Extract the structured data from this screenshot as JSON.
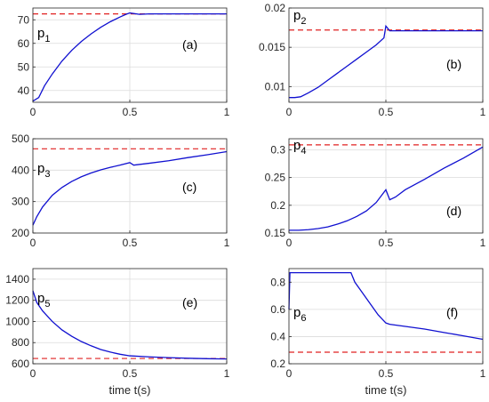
{
  "chart_data": [
    {
      "type": "line",
      "panel_label": "(a)",
      "param_label": "p",
      "param_sub": "1",
      "xlabel": "",
      "xlim": [
        0,
        1
      ],
      "ylim": [
        35,
        75
      ],
      "xticks": [
        0,
        0.5,
        1
      ],
      "yticks": [
        40,
        50,
        60,
        70
      ],
      "reference": 72.5,
      "x": [
        0,
        0.03,
        0.06,
        0.1,
        0.15,
        0.2,
        0.25,
        0.3,
        0.35,
        0.4,
        0.45,
        0.48,
        0.5,
        0.55,
        0.6,
        0.7,
        0.8,
        0.9,
        1.0
      ],
      "series": [
        {
          "values": [
            35.5,
            37,
            42,
            47,
            52.5,
            57,
            60.8,
            64,
            66.8,
            69.2,
            71.2,
            72.3,
            72.9,
            72.3,
            72.5,
            72.5,
            72.5,
            72.5,
            72.5
          ]
        }
      ]
    },
    {
      "type": "line",
      "panel_label": "(b)",
      "param_label": "p",
      "param_sub": "2",
      "xlabel": "",
      "xlim": [
        0,
        1
      ],
      "ylim": [
        0.008,
        0.02
      ],
      "xticks": [
        0,
        0.5,
        1
      ],
      "yticks": [
        0.01,
        0.015,
        0.02
      ],
      "reference": 0.0172,
      "x": [
        0,
        0.03,
        0.06,
        0.1,
        0.15,
        0.2,
        0.25,
        0.3,
        0.35,
        0.4,
        0.45,
        0.49,
        0.5,
        0.52,
        0.6,
        0.7,
        0.8,
        0.9,
        1.0
      ],
      "series": [
        {
          "values": [
            0.0086,
            0.0086,
            0.0087,
            0.0092,
            0.0099,
            0.0108,
            0.0117,
            0.0126,
            0.0135,
            0.0144,
            0.0153,
            0.0162,
            0.0177,
            0.0171,
            0.0171,
            0.0171,
            0.0171,
            0.0171,
            0.0171
          ]
        }
      ]
    },
    {
      "type": "line",
      "panel_label": "(c)",
      "param_label": "p",
      "param_sub": "3",
      "xlabel": "",
      "xlim": [
        0,
        1
      ],
      "ylim": [
        200,
        500
      ],
      "xticks": [
        0,
        0.5,
        1
      ],
      "yticks": [
        200,
        300,
        400,
        500
      ],
      "reference": 468,
      "x": [
        0,
        0.02,
        0.05,
        0.1,
        0.15,
        0.2,
        0.25,
        0.3,
        0.35,
        0.4,
        0.45,
        0.5,
        0.52,
        0.6,
        0.7,
        0.8,
        0.9,
        1.0
      ],
      "series": [
        {
          "values": [
            225,
            252,
            283,
            320,
            345,
            364,
            379,
            391,
            401,
            409,
            416,
            424,
            416,
            422,
            430,
            440,
            449,
            459
          ]
        }
      ]
    },
    {
      "type": "line",
      "panel_label": "(d)",
      "param_label": "p",
      "param_sub": "4",
      "xlabel": "",
      "xlim": [
        0,
        1
      ],
      "ylim": [
        0.15,
        0.32
      ],
      "xticks": [
        0,
        0.5,
        1
      ],
      "yticks": [
        0.15,
        0.2,
        0.25,
        0.3
      ],
      "reference": 0.309,
      "x": [
        0,
        0.05,
        0.1,
        0.15,
        0.2,
        0.25,
        0.3,
        0.35,
        0.4,
        0.45,
        0.5,
        0.52,
        0.55,
        0.6,
        0.7,
        0.8,
        0.9,
        1.0
      ],
      "series": [
        {
          "values": [
            0.155,
            0.155,
            0.156,
            0.158,
            0.161,
            0.166,
            0.172,
            0.18,
            0.19,
            0.205,
            0.228,
            0.21,
            0.215,
            0.228,
            0.247,
            0.267,
            0.285,
            0.305
          ]
        }
      ]
    },
    {
      "type": "line",
      "panel_label": "(e)",
      "param_label": "p",
      "param_sub": "5",
      "xlabel": "time t(s)",
      "xlim": [
        0,
        1
      ],
      "ylim": [
        600,
        1500
      ],
      "xticks": [
        0,
        0.5,
        1
      ],
      "yticks": [
        600,
        800,
        1000,
        1200,
        1400
      ],
      "reference": 650,
      "x": [
        0,
        0.02,
        0.05,
        0.1,
        0.15,
        0.2,
        0.25,
        0.3,
        0.35,
        0.4,
        0.45,
        0.5,
        0.6,
        0.7,
        0.8,
        0.9,
        1.0
      ],
      "series": [
        {
          "values": [
            1290,
            1180,
            1100,
            1000,
            920,
            860,
            810,
            770,
            735,
            710,
            690,
            675,
            665,
            658,
            652,
            648,
            645
          ]
        }
      ]
    },
    {
      "type": "line",
      "panel_label": "(f)",
      "param_label": "p",
      "param_sub": "6",
      "xlabel": "time t(s)",
      "xlim": [
        0,
        1
      ],
      "ylim": [
        0.2,
        0.9
      ],
      "xticks": [
        0,
        0.5,
        1
      ],
      "yticks": [
        0.2,
        0.4,
        0.6,
        0.8
      ],
      "reference": 0.285,
      "x": [
        0,
        0.005,
        0.01,
        0.1,
        0.2,
        0.3,
        0.32,
        0.34,
        0.36,
        0.38,
        0.4,
        0.42,
        0.44,
        0.46,
        0.48,
        0.5,
        0.52,
        0.6,
        0.7,
        0.8,
        0.9,
        1.0
      ],
      "series": [
        {
          "values": [
            0.6,
            0.87,
            0.87,
            0.87,
            0.87,
            0.87,
            0.87,
            0.8,
            0.76,
            0.72,
            0.68,
            0.64,
            0.6,
            0.56,
            0.53,
            0.5,
            0.49,
            0.475,
            0.455,
            0.43,
            0.405,
            0.38
          ]
        }
      ]
    }
  ],
  "colors": {
    "curve": "#1010d0",
    "reference": "#e02020",
    "grid": "#dcdcdc",
    "axis": "#262626"
  }
}
